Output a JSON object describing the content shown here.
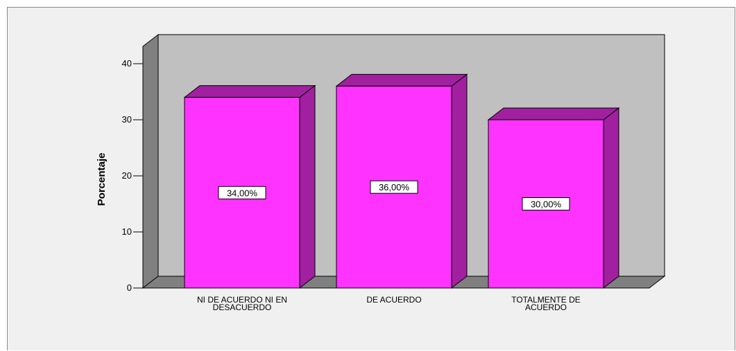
{
  "chart_data": {
    "type": "bar",
    "title": "",
    "xlabel": "",
    "ylabel": "Porcentaje",
    "ylim": [
      0,
      40
    ],
    "yticks": [
      0,
      10,
      20,
      30,
      40
    ],
    "categories": [
      [
        "NI DE ACUERDO NI EN",
        "DESACUERDO"
      ],
      [
        "DE ACUERDO"
      ],
      [
        "TOTALMENTE DE",
        "ACUERDO"
      ]
    ],
    "values": [
      34,
      36,
      30
    ],
    "data_labels": [
      "34,00%",
      "36,00%",
      "30,00%"
    ],
    "grid": false,
    "legend": "none",
    "style": "3d"
  },
  "colors": {
    "background": "#f0f0f0",
    "back_wall": "#c0c0c0",
    "side_wall": "#808080",
    "floor": "#808080",
    "bar_front": "#ff33ff",
    "bar_top": "#a020a0",
    "bar_side": "#a020a0",
    "outline": "#000000"
  }
}
